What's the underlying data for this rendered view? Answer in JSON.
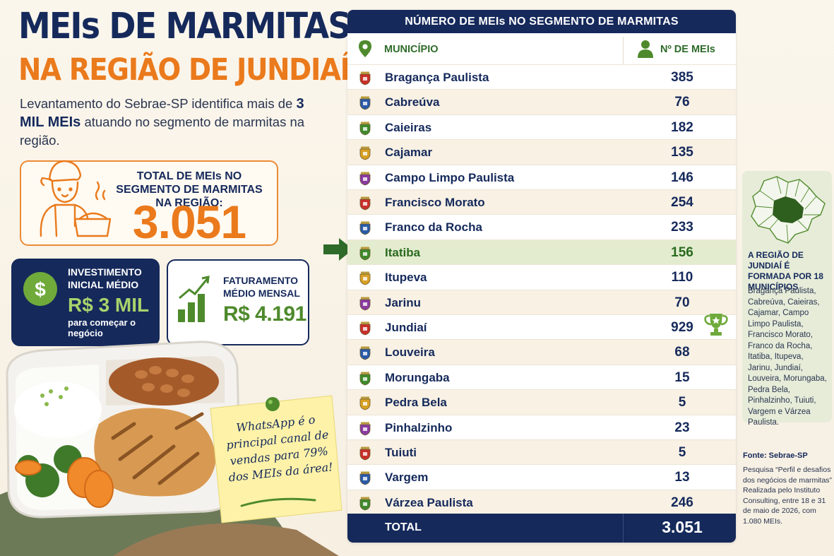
{
  "colors": {
    "navy": "#15295b",
    "orange": "#ea7a1c",
    "green": "#4e8a2c",
    "highlight_row": "#e3eccf",
    "alt_row": "#f8f1e4"
  },
  "header": {
    "title_line1": "MEIs DE MARMITAS",
    "title_line2": "NA REGIÃO DE JUNDIAÍ",
    "intro_pre": "Levantamento do Sebrae-SP identifica mais de",
    "intro_bold": "3 MIL MEIs",
    "intro_post": "atuando no segmento de marmitas na região."
  },
  "total_card": {
    "label": "TOTAL DE MEIs NO SEGMENTO DE MARMITAS NA REGIÃO:",
    "value": "3.051",
    "icon": "cook-icon"
  },
  "investment_card": {
    "label": "INVESTIMENTO INICIAL MÉDIO",
    "value": "R$ 3 MIL",
    "note": "para começar o negócio",
    "icon": "dollar-coin-icon"
  },
  "revenue_card": {
    "label": "FATURAMENTO MÉDIO MENSAL",
    "value": "R$ 4.191",
    "icon": "growth-bars-icon"
  },
  "sticky_note": {
    "text": "WhatsApp é o principal canal de vendas para 79% dos MEIs da área!"
  },
  "chart_data": {
    "type": "table",
    "title": "NÚMERO DE MEIs NO SEGMENTO DE MARMITAS",
    "columns": [
      "MUNICÍPIO",
      "Nº DE MEIs"
    ],
    "highlighted": "Itatiba",
    "top_marked": "Jundiaí",
    "rows": [
      {
        "municipio": "Bragança Paulista",
        "meis": 385
      },
      {
        "municipio": "Cabreúva",
        "meis": 76
      },
      {
        "municipio": "Caieiras",
        "meis": 182
      },
      {
        "municipio": "Cajamar",
        "meis": 135
      },
      {
        "municipio": "Campo Limpo Paulista",
        "meis": 146
      },
      {
        "municipio": "Francisco Morato",
        "meis": 254
      },
      {
        "municipio": "Franco da Rocha",
        "meis": 233
      },
      {
        "municipio": "Itatiba",
        "meis": 156
      },
      {
        "municipio": "Itupeva",
        "meis": 110
      },
      {
        "municipio": "Jarinu",
        "meis": 70
      },
      {
        "municipio": "Jundiaí",
        "meis": 929
      },
      {
        "municipio": "Louveira",
        "meis": 68
      },
      {
        "municipio": "Morungaba",
        "meis": 15
      },
      {
        "municipio": "Pedra Bela",
        "meis": 5
      },
      {
        "municipio": "Pinhalzinho",
        "meis": 23
      },
      {
        "municipio": "Tuiuti",
        "meis": 5
      },
      {
        "municipio": "Vargem",
        "meis": 13
      },
      {
        "municipio": "Várzea Paulista",
        "meis": 246
      }
    ],
    "total_label": "TOTAL",
    "total_value": "3.051"
  },
  "region": {
    "title": "A REGIÃO DE JUNDIAÍ É FORMADA POR 18 MUNICÍPIOS",
    "list": "Bragança Paulista, Cabreúva, Caieiras, Cajamar, Campo Limpo Paulista, Francisco Morato, Franco da Rocha, Itatiba, Itupeva, Jarinu, Jundiaí, Louveira, Morungaba, Pedra Bela, Pinhalzinho, Tuiuti, Vargem e Várzea Paulista."
  },
  "source": {
    "title": "Fonte: Sebrae-SP",
    "text": "Pesquisa “Perfil e desafios dos negócios de marmitas” Realizada pelo Instituto Consulting, entre 18 e 31 de maio de 2026, com 1.080 MEIs."
  }
}
